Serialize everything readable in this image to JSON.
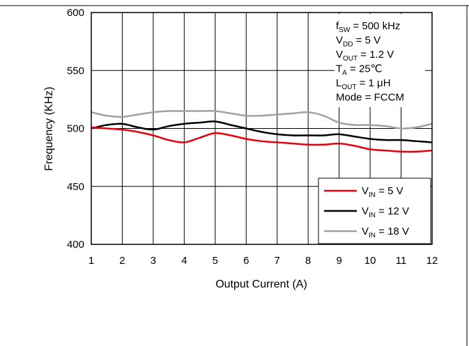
{
  "chart_data": {
    "type": "line",
    "xlabel": "Output Current (A)",
    "ylabel": "Frequency (KHz)",
    "xlim": [
      1,
      12
    ],
    "ylim": [
      400,
      600
    ],
    "xticks": [
      "1",
      "2",
      "3",
      "4",
      "5",
      "6",
      "7",
      "8",
      "9",
      "10",
      "11",
      "12"
    ],
    "yticks": [
      "400",
      "450",
      "500",
      "550",
      "600"
    ],
    "grid": true,
    "legend_position": "bottom-right",
    "x": [
      1,
      1.5,
      2,
      2.5,
      3,
      3.5,
      4,
      4.5,
      5,
      5.5,
      6,
      6.5,
      7,
      7.5,
      8,
      8.5,
      9,
      9.5,
      10,
      10.5,
      11,
      11.5,
      12
    ],
    "series": [
      {
        "name_main": "V",
        "name_sub": "IN",
        "name_rest": " = 5 V",
        "color": "#e8000b",
        "values": [
          501,
          500,
          499,
          497,
          494,
          490,
          488,
          492,
          496,
          494,
          491,
          489,
          488,
          487,
          486,
          486,
          487,
          485,
          482,
          481,
          480,
          480,
          481
        ]
      },
      {
        "name_main": "V",
        "name_sub": "IN",
        "name_rest": " = 12 V",
        "color": "#000000",
        "values": [
          500,
          503,
          504,
          501,
          499,
          502,
          504,
          505,
          506,
          503,
          500,
          497,
          495,
          494,
          494,
          494,
          495,
          493,
          491,
          490,
          490,
          489,
          488
        ]
      },
      {
        "name_main": "V",
        "name_sub": "IN",
        "name_rest": " = 18 V",
        "color": "#a0a0a0",
        "values": [
          514,
          511,
          510,
          512,
          514,
          515,
          515,
          515,
          515,
          513,
          511,
          511,
          512,
          513,
          514,
          511,
          505,
          503,
          503,
          502,
          500,
          501,
          504
        ]
      }
    ],
    "annotations": [
      {
        "main": "f",
        "sub": "SW",
        "rest": " = 500 kHz"
      },
      {
        "main": "V",
        "sub": "DD",
        "rest": " = 5 V"
      },
      {
        "main": "V",
        "sub": "OUT",
        "rest": " = 1.2 V"
      },
      {
        "main": "T",
        "sub": "A",
        "rest": " = 25℃"
      },
      {
        "main": "L",
        "sub": "OUT",
        "rest": " = 1 μH"
      },
      {
        "main": "Mode = FCCM",
        "sub": "",
        "rest": ""
      }
    ]
  }
}
